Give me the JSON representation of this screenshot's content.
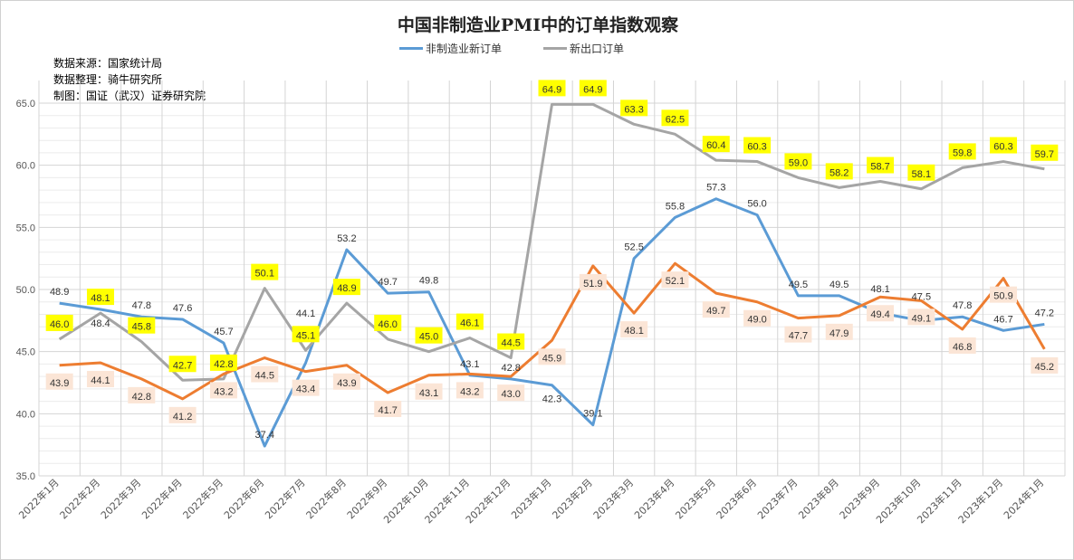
{
  "chart_data": {
    "type": "line",
    "title": "中国非制造业PMI中的订单指数观察",
    "notes": [
      "数据来源：国家统计局",
      "数据整理：骑牛研究所",
      "制图：国证（武汉）证券研究院"
    ],
    "categories": [
      "2022年1月",
      "2022年2月",
      "2022年3月",
      "2022年4月",
      "2022年5月",
      "2022年6月",
      "2022年7月",
      "2022年8月",
      "2022年9月",
      "2022年10月",
      "2022年11月",
      "2022年12月",
      "2023年1月",
      "2023年2月",
      "2023年3月",
      "2023年4月",
      "2023年5月",
      "2023年6月",
      "2023年7月",
      "2023年8月",
      "2023年9月",
      "2023年10月",
      "2023年11月",
      "2023年12月",
      "2024年1月"
    ],
    "ylim": [
      35,
      65
    ],
    "yticks": [
      "35.0",
      "40.0",
      "45.0",
      "50.0",
      "55.0",
      "60.0",
      "65.0"
    ],
    "grid": true,
    "legend_position": "top",
    "series": [
      {
        "name": "非制造业新订单",
        "color": "#5b9bd5",
        "label_style": "plain",
        "values": [
          48.9,
          48.4,
          47.8,
          47.6,
          45.7,
          37.4,
          44.1,
          53.2,
          49.7,
          49.8,
          43.1,
          42.8,
          42.3,
          39.1,
          52.5,
          55.8,
          57.3,
          56.0,
          49.5,
          49.5,
          48.1,
          47.5,
          47.8,
          46.7,
          47.2
        ]
      },
      {
        "name": "新出口订单",
        "color": "#a5a5a5",
        "label_style": "yellow",
        "values": [
          46.0,
          48.1,
          45.8,
          42.7,
          42.8,
          50.1,
          45.1,
          48.9,
          46.0,
          45.0,
          46.1,
          44.5,
          64.9,
          64.9,
          63.3,
          62.5,
          60.4,
          60.3,
          59.0,
          58.2,
          58.7,
          58.1,
          59.8,
          60.3,
          59.7
        ]
      },
      {
        "color": "#ed7d31",
        "label_style": "peach",
        "values": [
          43.9,
          44.1,
          42.8,
          41.2,
          43.2,
          44.5,
          43.4,
          43.9,
          41.7,
          43.1,
          43.2,
          43.0,
          45.9,
          51.9,
          48.1,
          52.1,
          49.7,
          49.0,
          47.7,
          47.9,
          49.4,
          49.1,
          46.8,
          50.9,
          45.2
        ]
      }
    ]
  }
}
